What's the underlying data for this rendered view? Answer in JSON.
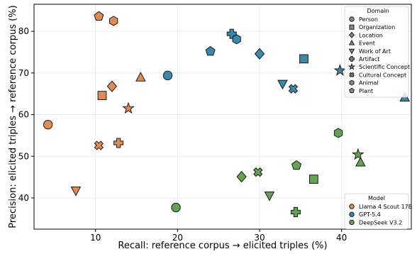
{
  "chart_data": {
    "type": "scatter",
    "xlabel": "Recall: reference corpus → elicited triples (%)",
    "ylabel": "Precision: elicited triples → reference corpus (%)",
    "xlim": [
      2.5,
      48.5
    ],
    "ylim": [
      32.5,
      86.5
    ],
    "xticks": [
      10,
      20,
      30,
      40
    ],
    "yticks": [
      40,
      50,
      60,
      70,
      80
    ],
    "grid": true,
    "domain_legend": {
      "title": "Domain",
      "position": "top-right",
      "entries": [
        {
          "label": "Person",
          "marker": "circle"
        },
        {
          "label": "Organization",
          "marker": "square"
        },
        {
          "label": "Location",
          "marker": "diamond"
        },
        {
          "label": "Event",
          "marker": "triangle-up"
        },
        {
          "label": "Work of Art",
          "marker": "triangle-down"
        },
        {
          "label": "Artifact",
          "marker": "plus"
        },
        {
          "label": "Scientific Concept",
          "marker": "star"
        },
        {
          "label": "Cultural Concept",
          "marker": "x"
        },
        {
          "label": "Animal",
          "marker": "hexagon"
        },
        {
          "label": "Plant",
          "marker": "pentagon"
        }
      ]
    },
    "model_legend": {
      "title": "Model",
      "position": "bottom-right",
      "entries": [
        {
          "label": "Llama 4 Scout 17B",
          "color": "#e08b52"
        },
        {
          "label": "GPT-5.4",
          "color": "#3a89ac"
        },
        {
          "label": "DeepSeek V3.2",
          "color": "#5fa54f"
        }
      ]
    },
    "series": [
      {
        "name": "Llama 4 Scout 17B",
        "color": "#e08b52",
        "points": [
          {
            "x": 4.2,
            "y": 57.6,
            "domain": "Person"
          },
          {
            "x": 10.8,
            "y": 64.6,
            "domain": "Organization"
          },
          {
            "x": 12.0,
            "y": 66.8,
            "domain": "Location"
          },
          {
            "x": 15.5,
            "y": 68.9,
            "domain": "Event"
          },
          {
            "x": 7.6,
            "y": 41.8,
            "domain": "Work of Art"
          },
          {
            "x": 12.8,
            "y": 53.2,
            "domain": "Artifact"
          },
          {
            "x": 14.0,
            "y": 61.5,
            "domain": "Scientific Concept"
          },
          {
            "x": 10.4,
            "y": 52.6,
            "domain": "Cultural Concept"
          },
          {
            "x": 12.2,
            "y": 82.5,
            "domain": "Animal"
          },
          {
            "x": 10.4,
            "y": 83.6,
            "domain": "Plant"
          }
        ]
      },
      {
        "name": "GPT-5.4",
        "color": "#3a89ac",
        "points": [
          {
            "x": 18.8,
            "y": 69.4,
            "domain": "Person"
          },
          {
            "x": 35.4,
            "y": 73.4,
            "domain": "Organization"
          },
          {
            "x": 30.0,
            "y": 74.6,
            "domain": "Location"
          },
          {
            "x": 47.7,
            "y": 64.1,
            "domain": "Event"
          },
          {
            "x": 32.8,
            "y": 67.4,
            "domain": "Work of Art"
          },
          {
            "x": 26.6,
            "y": 79.4,
            "domain": "Artifact"
          },
          {
            "x": 39.8,
            "y": 70.6,
            "domain": "Scientific Concept"
          },
          {
            "x": 34.1,
            "y": 66.2,
            "domain": "Cultural Concept"
          },
          {
            "x": 27.2,
            "y": 78.1,
            "domain": "Animal"
          },
          {
            "x": 24.0,
            "y": 75.2,
            "domain": "Plant"
          }
        ]
      },
      {
        "name": "DeepSeek V3.2",
        "color": "#5fa54f",
        "points": [
          {
            "x": 19.8,
            "y": 37.7,
            "domain": "Person"
          },
          {
            "x": 36.6,
            "y": 44.5,
            "domain": "Organization"
          },
          {
            "x": 27.8,
            "y": 45.1,
            "domain": "Location"
          },
          {
            "x": 42.3,
            "y": 48.5,
            "domain": "Event"
          },
          {
            "x": 31.2,
            "y": 40.6,
            "domain": "Work of Art"
          },
          {
            "x": 34.4,
            "y": 36.6,
            "domain": "Artifact"
          },
          {
            "x": 42.0,
            "y": 50.4,
            "domain": "Scientific Concept"
          },
          {
            "x": 29.8,
            "y": 46.2,
            "domain": "Cultural Concept"
          },
          {
            "x": 39.6,
            "y": 55.6,
            "domain": "Animal"
          },
          {
            "x": 34.5,
            "y": 47.8,
            "domain": "Plant"
          }
        ]
      }
    ]
  }
}
